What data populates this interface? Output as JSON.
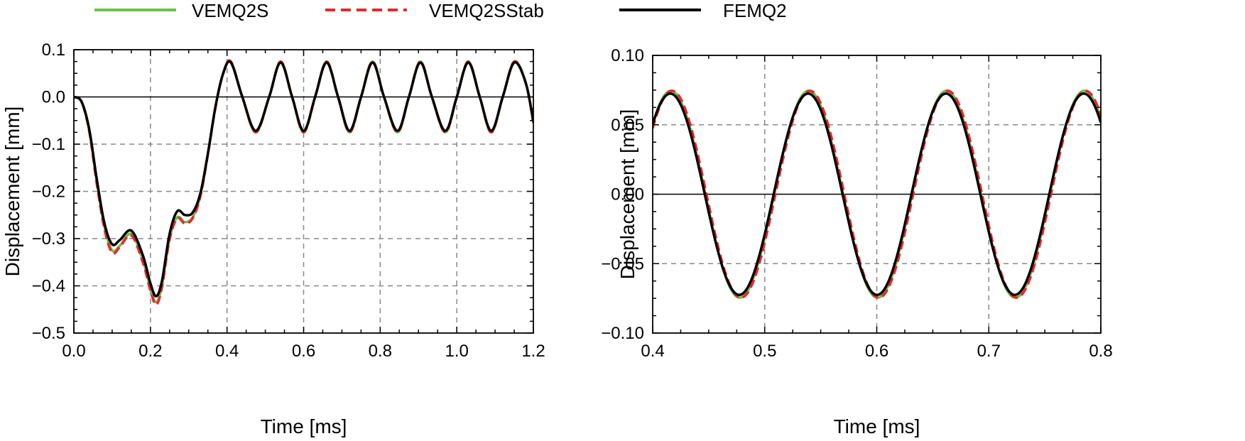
{
  "legend": {
    "placement": "top-center",
    "entries": [
      {
        "name": "VEMQ2S",
        "color": "#6cc04a",
        "style": "solid"
      },
      {
        "name": "VEMQ2SStab",
        "color": "#e8262b",
        "style": "dashed"
      },
      {
        "name": "FEMQ2",
        "color": "#000000",
        "style": "solid"
      }
    ]
  },
  "chart_data": [
    {
      "type": "line",
      "title": "",
      "xlabel": "Time [ms]",
      "ylabel": "Displacement [mm]",
      "xlim": [
        0.0,
        1.2
      ],
      "ylim": [
        -0.5,
        0.1
      ],
      "xticks": [
        0.0,
        0.2,
        0.4,
        0.6,
        0.8,
        1.0,
        1.2
      ],
      "xtick_labels": [
        "0.0",
        "0.2",
        "0.4",
        "0.6",
        "0.8",
        "1.0",
        "1.2"
      ],
      "yticks": [
        0.1,
        0.0,
        -0.1,
        -0.2,
        -0.3,
        -0.4,
        -0.5
      ],
      "ytick_labels": [
        "0.1",
        "0.0",
        "−0.1",
        "−0.2",
        "−0.3",
        "−0.4",
        "−0.5"
      ],
      "grid": true,
      "zero_line": true,
      "series": [
        {
          "name": "VEMQ2S",
          "x": [
            0.0,
            0.02,
            0.04,
            0.06,
            0.08,
            0.1,
            0.12,
            0.15,
            0.18,
            0.2,
            0.215,
            0.23,
            0.25,
            0.27,
            0.29,
            0.31,
            0.33,
            0.35,
            0.37,
            0.39,
            0.41,
            0.44,
            0.475,
            0.51,
            0.54,
            0.57,
            0.6,
            0.63,
            0.66,
            0.69,
            0.72,
            0.75,
            0.78,
            0.81,
            0.845,
            0.875,
            0.905,
            0.935,
            0.97,
            1.0,
            1.03,
            1.06,
            1.09,
            1.12,
            1.15,
            1.18,
            1.2
          ],
          "y": [
            0.0,
            -0.01,
            -0.07,
            -0.18,
            -0.275,
            -0.325,
            -0.315,
            -0.29,
            -0.345,
            -0.405,
            -0.435,
            -0.4,
            -0.3,
            -0.255,
            -0.265,
            -0.255,
            -0.21,
            -0.12,
            -0.02,
            0.05,
            0.075,
            0.0,
            -0.075,
            0.0,
            0.075,
            0.0,
            -0.075,
            0.0,
            0.075,
            0.0,
            -0.075,
            0.0,
            0.075,
            0.0,
            -0.075,
            0.0,
            0.075,
            0.0,
            -0.075,
            0.0,
            0.075,
            0.0,
            -0.075,
            0.0,
            0.075,
            0.03,
            -0.055
          ]
        },
        {
          "name": "VEMQ2SStab",
          "x": [
            0.0,
            0.02,
            0.04,
            0.06,
            0.08,
            0.1,
            0.12,
            0.15,
            0.18,
            0.2,
            0.215,
            0.23,
            0.25,
            0.27,
            0.29,
            0.31,
            0.33,
            0.35,
            0.37,
            0.39,
            0.41,
            0.44,
            0.475,
            0.51,
            0.54,
            0.57,
            0.6,
            0.63,
            0.66,
            0.69,
            0.72,
            0.75,
            0.78,
            0.81,
            0.845,
            0.875,
            0.905,
            0.935,
            0.97,
            1.0,
            1.03,
            1.06,
            1.09,
            1.12,
            1.15,
            1.18,
            1.2
          ],
          "y": [
            0.0,
            -0.01,
            -0.072,
            -0.185,
            -0.28,
            -0.33,
            -0.318,
            -0.293,
            -0.35,
            -0.41,
            -0.44,
            -0.403,
            -0.302,
            -0.257,
            -0.268,
            -0.257,
            -0.212,
            -0.122,
            -0.021,
            0.05,
            0.075,
            0.0,
            -0.075,
            0.0,
            0.075,
            0.0,
            -0.075,
            0.0,
            0.075,
            0.0,
            -0.075,
            0.0,
            0.075,
            0.0,
            -0.075,
            0.0,
            0.075,
            0.0,
            -0.075,
            0.0,
            0.075,
            0.0,
            -0.075,
            0.0,
            0.075,
            0.03,
            -0.055
          ]
        },
        {
          "name": "FEMQ2",
          "x": [
            0.0,
            0.02,
            0.04,
            0.06,
            0.08,
            0.1,
            0.12,
            0.15,
            0.18,
            0.2,
            0.215,
            0.23,
            0.25,
            0.27,
            0.29,
            0.31,
            0.33,
            0.35,
            0.37,
            0.39,
            0.41,
            0.44,
            0.475,
            0.51,
            0.54,
            0.57,
            0.6,
            0.63,
            0.66,
            0.69,
            0.72,
            0.75,
            0.78,
            0.81,
            0.845,
            0.875,
            0.905,
            0.935,
            0.97,
            1.0,
            1.03,
            1.06,
            1.09,
            1.12,
            1.15,
            1.18,
            1.2
          ],
          "y": [
            0.0,
            -0.01,
            -0.068,
            -0.175,
            -0.268,
            -0.312,
            -0.303,
            -0.283,
            -0.335,
            -0.395,
            -0.422,
            -0.39,
            -0.29,
            -0.242,
            -0.25,
            -0.245,
            -0.205,
            -0.12,
            -0.02,
            0.05,
            0.073,
            0.0,
            -0.072,
            0.0,
            0.073,
            0.0,
            -0.072,
            0.0,
            0.073,
            0.0,
            -0.072,
            0.0,
            0.073,
            0.0,
            -0.072,
            0.0,
            0.073,
            0.0,
            -0.072,
            0.0,
            0.073,
            0.0,
            -0.072,
            0.0,
            0.073,
            0.03,
            -0.052
          ]
        }
      ]
    },
    {
      "type": "line",
      "title": "",
      "xlabel": "Time [ms]",
      "ylabel": "Displacement [mm]",
      "xlim": [
        0.4,
        0.8
      ],
      "ylim": [
        -0.1,
        0.1
      ],
      "xticks": [
        0.4,
        0.5,
        0.6,
        0.7,
        0.8
      ],
      "xtick_labels": [
        "0.4",
        "0.5",
        "0.6",
        "0.7",
        "0.8"
      ],
      "yticks": [
        0.1,
        0.05,
        0.0,
        -0.05,
        -0.1
      ],
      "ytick_labels": [
        "0.10",
        "0.05",
        "0.00",
        "−0.05",
        "−0.10"
      ],
      "grid": true,
      "zero_line": true,
      "oscillation": {
        "period_ms": 0.123,
        "phase_ms": 0.508
      },
      "series": [
        {
          "name": "VEMQ2S",
          "amplitude": 0.0745,
          "period_ms": 0.123,
          "phase_ms": 0.5085
        },
        {
          "name": "VEMQ2SStab",
          "amplitude": 0.0745,
          "period_ms": 0.123,
          "phase_ms": 0.5095
        },
        {
          "name": "FEMQ2",
          "amplitude": 0.0725,
          "period_ms": 0.123,
          "phase_ms": 0.508
        }
      ]
    }
  ]
}
